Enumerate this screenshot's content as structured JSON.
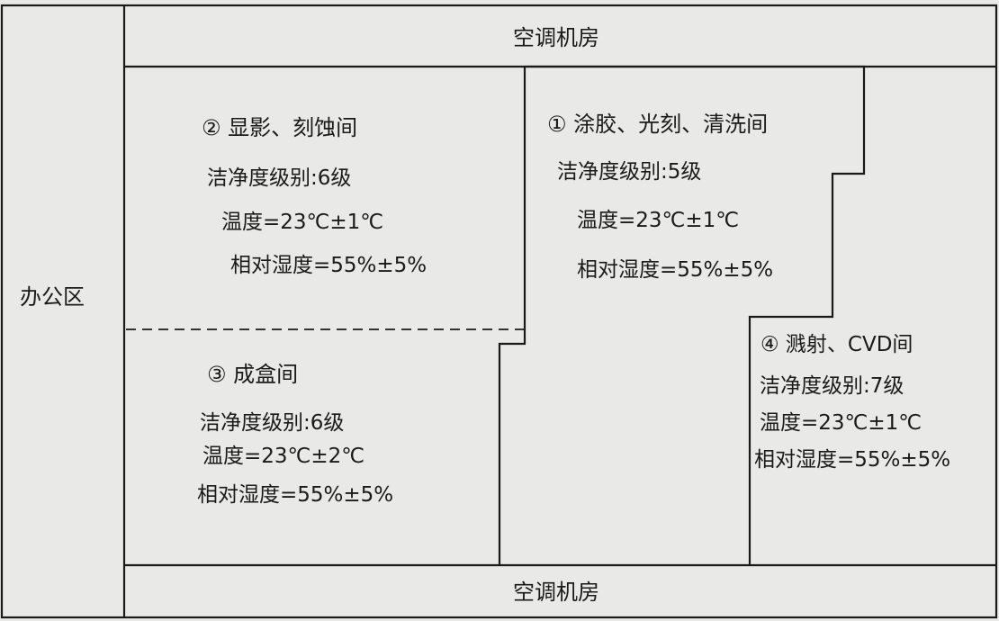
{
  "zones": {
    "ac_top": "空调机房",
    "ac_bottom": "空调机房",
    "office": "办公区"
  },
  "rooms": [
    {
      "title": "②  显影、刻蚀间",
      "cleanliness": "洁净度级别:6级",
      "temperature": "温度=23℃±1℃",
      "humidity": "相对湿度=55%±5%"
    },
    {
      "title": "①  涂胶、光刻、清洗间",
      "cleanliness": "洁净度级别:5级",
      "temperature": "温度=23℃±1℃",
      "humidity": "相对湿度=55%±5%"
    },
    {
      "title": "③  成盒间",
      "cleanliness": "洁净度级别:6级",
      "temperature": "温度=23℃±2℃",
      "humidity": "相对湿度=55%±5%"
    },
    {
      "title": "④ 溅射、CVD间",
      "cleanliness": "洁净度级别:7级",
      "temperature": "温度=23℃±1℃",
      "humidity": "相对湿度=55%±5%"
    }
  ]
}
